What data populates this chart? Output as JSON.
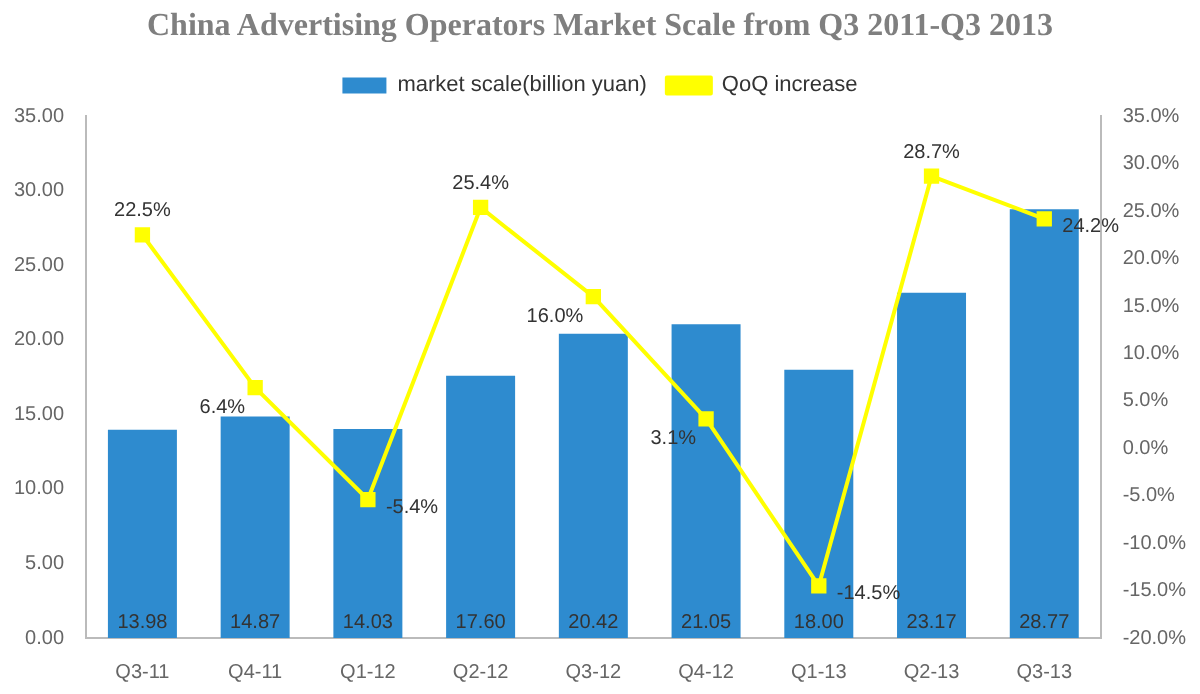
{
  "chart_data": {
    "type": "bar",
    "title": "China Advertising Operators Market Scale from Q3 2011-Q3 2013",
    "categories": [
      "Q3-11",
      "Q4-11",
      "Q1-12",
      "Q2-12",
      "Q3-12",
      "Q4-12",
      "Q1-13",
      "Q2-13",
      "Q3-13"
    ],
    "series": [
      {
        "name": "market scale(billion yuan)",
        "color": "#2e8bcf",
        "values": [
          13.98,
          14.87,
          14.03,
          17.6,
          20.42,
          21.05,
          18.0,
          23.17,
          28.77
        ],
        "value_labels": [
          "13.98",
          "14.87",
          "14.03",
          "17.60",
          "20.42",
          "21.05",
          "18.00",
          "23.17",
          "28.77"
        ]
      },
      {
        "name": "QoQ increase",
        "type": "line",
        "axis": "y2",
        "color": "#ffff00",
        "marker": "square",
        "values": [
          22.5,
          6.4,
          -5.4,
          25.4,
          16.0,
          3.1,
          -14.5,
          28.7,
          24.2
        ],
        "value_labels": [
          "22.5%",
          "6.4%",
          "-5.4%",
          "25.4%",
          "16.0%",
          "3.1%",
          "-14.5%",
          "28.7%",
          "24.2%"
        ]
      }
    ],
    "ylim": [
      0,
      35
    ],
    "yticks": [
      {
        "value": 0,
        "label": "0.00"
      },
      {
        "value": 5,
        "label": "5.00"
      },
      {
        "value": 10,
        "label": "10.00"
      },
      {
        "value": 15,
        "label": "15.00"
      },
      {
        "value": 20,
        "label": "20.00"
      },
      {
        "value": 25,
        "label": "25.00"
      },
      {
        "value": 30,
        "label": "30.00"
      },
      {
        "value": 35,
        "label": "35.00"
      }
    ],
    "y2lim": [
      -20,
      35
    ],
    "y2ticks": [
      {
        "value": -20,
        "label": "-20.0%"
      },
      {
        "value": -15,
        "label": "-15.0%"
      },
      {
        "value": -10,
        "label": "-10.0%"
      },
      {
        "value": -5,
        "label": "-5.0%"
      },
      {
        "value": 0,
        "label": "0.0%"
      },
      {
        "value": 5,
        "label": "5.0%"
      },
      {
        "value": 10,
        "label": "10.0%"
      },
      {
        "value": 15,
        "label": "15.0%"
      },
      {
        "value": 20,
        "label": "20.0%"
      },
      {
        "value": 25,
        "label": "25.0%"
      },
      {
        "value": 30,
        "label": "30.0%"
      },
      {
        "value": 35,
        "label": "35.0%"
      }
    ],
    "legend": "top"
  }
}
